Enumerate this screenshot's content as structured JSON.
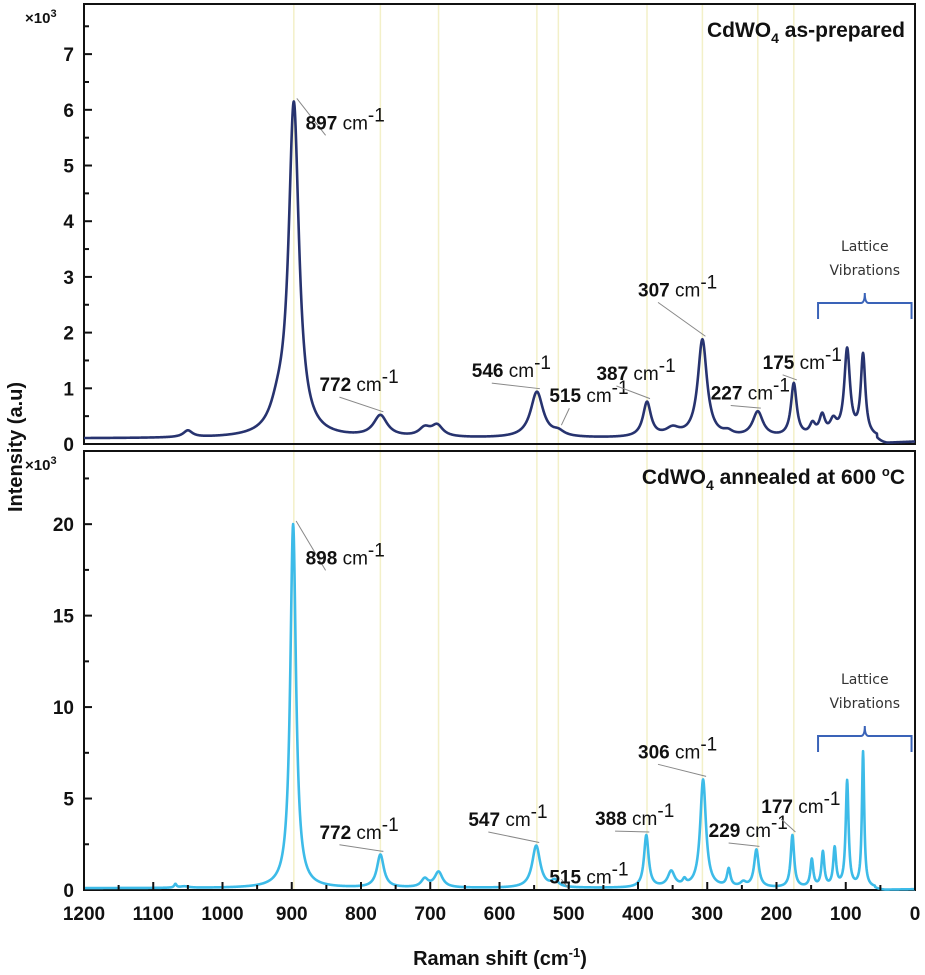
{
  "chart_data": [
    {
      "type": "line",
      "panel": "top",
      "title": "CdWO4 as-prepared",
      "title_parts": {
        "main": "CdWO",
        "sub": "4",
        "rest": " as-prepared"
      },
      "xlabel": "Raman shift (cm-1)",
      "ylabel": "Intensity (a.u)",
      "y_multiplier": "×10",
      "y_multiplier_exp": "3",
      "xlim": [
        1200,
        0
      ],
      "ylim": [
        0,
        7.9
      ],
      "yticks": [
        0,
        1,
        2,
        3,
        4,
        5,
        6,
        7
      ],
      "line_color": "#27336f",
      "baseline": 0.1,
      "peaks": [
        {
          "x": 1050,
          "height": 0.12,
          "width": 8
        },
        {
          "x": 920,
          "height": 0.35,
          "width": 14
        },
        {
          "x": 897,
          "height": 5.95,
          "width": 9
        },
        {
          "x": 772,
          "height": 0.38,
          "width": 12
        },
        {
          "x": 708,
          "height": 0.15,
          "width": 10
        },
        {
          "x": 690,
          "height": 0.2,
          "width": 10
        },
        {
          "x": 546,
          "height": 0.82,
          "width": 11
        },
        {
          "x": 515,
          "height": 0.08,
          "width": 10
        },
        {
          "x": 387,
          "height": 0.62,
          "width": 7
        },
        {
          "x": 350,
          "height": 0.14,
          "width": 12
        },
        {
          "x": 307,
          "height": 1.75,
          "width": 8
        },
        {
          "x": 270,
          "height": 0.07,
          "width": 8
        },
        {
          "x": 227,
          "height": 0.45,
          "width": 9
        },
        {
          "x": 175,
          "height": 0.95,
          "width": 5
        },
        {
          "x": 148,
          "height": 0.2,
          "width": 5
        },
        {
          "x": 134,
          "height": 0.35,
          "width": 5
        },
        {
          "x": 118,
          "height": 0.25,
          "width": 6
        },
        {
          "x": 98,
          "height": 1.55,
          "width": 5
        },
        {
          "x": 75,
          "height": 1.45,
          "width": 4
        }
      ],
      "cutoff": 55,
      "annotations": [
        {
          "value": "897",
          "unit": "cm",
          "exp": "-1",
          "peak_x": 897,
          "label_x": 880,
          "label_y": 5.65
        },
        {
          "value": "772",
          "unit": "cm",
          "exp": "-1",
          "peak_x": 772,
          "label_x": 860,
          "label_y": 0.95
        },
        {
          "value": "546",
          "unit": "cm",
          "exp": "-1",
          "peak_x": 546,
          "label_x": 640,
          "label_y": 1.2
        },
        {
          "value": "515",
          "unit": "cm",
          "exp": "-1",
          "peak_x": 515,
          "label_x": 528,
          "label_y": 0.75
        },
        {
          "value": "387",
          "unit": "cm",
          "exp": "-1",
          "peak_x": 387,
          "label_x": 460,
          "label_y": 1.15
        },
        {
          "value": "307",
          "unit": "cm",
          "exp": "-1",
          "peak_x": 307,
          "label_x": 400,
          "label_y": 2.65
        },
        {
          "value": "227",
          "unit": "cm",
          "exp": "-1",
          "peak_x": 227,
          "label_x": 295,
          "label_y": 0.8
        },
        {
          "value": "175",
          "unit": "cm",
          "exp": "-1",
          "peak_x": 175,
          "label_x": 220,
          "label_y": 1.35
        }
      ],
      "lattice_label": [
        "Lattice",
        "Vibrations"
      ],
      "bracket_range": [
        140,
        5
      ],
      "bracket_color": "#3a63b8"
    },
    {
      "type": "line",
      "panel": "bottom",
      "title": "CdWO4 annealed at 600 °C",
      "title_parts": {
        "main": "CdWO",
        "sub": "4",
        "rest": " annealed at 600 ",
        "deg": "o",
        "tail": "C"
      },
      "y_multiplier": "×10",
      "y_multiplier_exp": "3",
      "xlim": [
        1200,
        0
      ],
      "ylim": [
        0,
        24
      ],
      "yticks": [
        0,
        5,
        10,
        15,
        20
      ],
      "xticks": [
        1200,
        1100,
        1000,
        900,
        800,
        700,
        600,
        500,
        400,
        300,
        200,
        100,
        0
      ],
      "line_color": "#3dbbe8",
      "baseline": 0.1,
      "peaks": [
        {
          "x": 1068,
          "height": 0.2,
          "width": 2
        },
        {
          "x": 1055,
          "height": 0.08,
          "width": 8
        },
        {
          "x": 898,
          "height": 19.9,
          "width": 5
        },
        {
          "x": 772,
          "height": 1.8,
          "width": 6
        },
        {
          "x": 708,
          "height": 0.45,
          "width": 6
        },
        {
          "x": 688,
          "height": 0.85,
          "width": 7
        },
        {
          "x": 547,
          "height": 2.3,
          "width": 7
        },
        {
          "x": 520,
          "height": 0.35,
          "width": 6
        },
        {
          "x": 388,
          "height": 2.85,
          "width": 4
        },
        {
          "x": 352,
          "height": 0.85,
          "width": 6
        },
        {
          "x": 333,
          "height": 0.3,
          "width": 3
        },
        {
          "x": 306,
          "height": 5.9,
          "width": 5
        },
        {
          "x": 269,
          "height": 0.95,
          "width": 3
        },
        {
          "x": 248,
          "height": 0.25,
          "width": 5
        },
        {
          "x": 229,
          "height": 2.05,
          "width": 4
        },
        {
          "x": 177,
          "height": 2.85,
          "width": 3
        },
        {
          "x": 149,
          "height": 1.5,
          "width": 2.5
        },
        {
          "x": 133,
          "height": 1.9,
          "width": 2.5
        },
        {
          "x": 116,
          "height": 2.1,
          "width": 2.5
        },
        {
          "x": 98,
          "height": 5.8,
          "width": 2.5
        },
        {
          "x": 75,
          "height": 7.4,
          "width": 2
        }
      ],
      "cutoff": 58,
      "annotations": [
        {
          "value": "898",
          "unit": "cm",
          "exp": "-1",
          "peak_x": 898,
          "label_x": 880,
          "label_y": 17.8
        },
        {
          "value": "772",
          "unit": "cm",
          "exp": "-1",
          "peak_x": 772,
          "label_x": 860,
          "label_y": 2.8
        },
        {
          "value": "547",
          "unit": "cm",
          "exp": "-1",
          "peak_x": 547,
          "label_x": 645,
          "label_y": 3.5
        },
        {
          "value": "515",
          "unit": "cm",
          "exp": "-1",
          "peak_x": 515,
          "label_x": 528,
          "label_y": 0.35
        },
        {
          "value": "388",
          "unit": "cm",
          "exp": "-1",
          "peak_x": 388,
          "label_x": 462,
          "label_y": 3.55
        },
        {
          "value": "306",
          "unit": "cm",
          "exp": "-1",
          "peak_x": 306,
          "label_x": 400,
          "label_y": 7.2
        },
        {
          "value": "229",
          "unit": "cm",
          "exp": "-1",
          "peak_x": 229,
          "label_x": 298,
          "label_y": 2.9
        },
        {
          "value": "177",
          "unit": "cm",
          "exp": "-1",
          "peak_x": 177,
          "label_x": 222,
          "label_y": 4.2
        }
      ],
      "lattice_label": [
        "Lattice",
        "Vibrations"
      ],
      "bracket_range": [
        140,
        5
      ],
      "bracket_color": "#3a63b8"
    }
  ],
  "guide_lines": [
    897,
    772,
    688,
    546,
    515,
    387,
    307,
    227,
    175
  ],
  "guide_color": "#f3f0c8",
  "axes": {
    "xlabel_main": "Raman shift (cm",
    "xlabel_exp": "-1",
    "xlabel_close": ")",
    "ylabel": "Intensity (a.u)"
  }
}
